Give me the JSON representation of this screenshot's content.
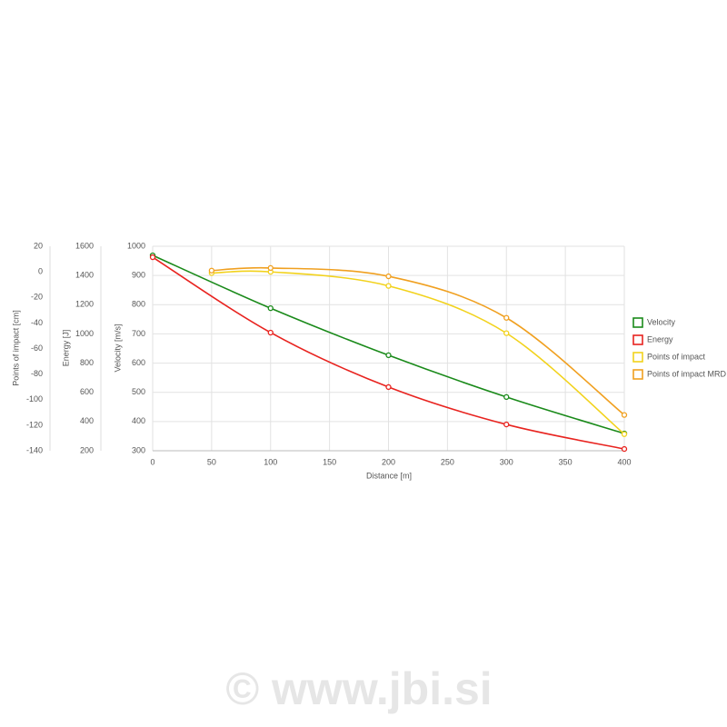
{
  "chart_data": {
    "type": "line",
    "xlabel": "Distance [m]",
    "ylabel": "Velocity [m/s]",
    "y2label": "Energy [J]",
    "y3label": "Points of impact [cm]",
    "xlim": [
      0,
      400
    ],
    "xticks": [
      0,
      50,
      100,
      150,
      200,
      250,
      300,
      350,
      400
    ],
    "ylim": [
      300,
      1000
    ],
    "yticks": [
      300,
      400,
      500,
      600,
      700,
      800,
      900,
      1000
    ],
    "y2lim": [
      200,
      1600
    ],
    "y2ticks": [
      200,
      400,
      600,
      800,
      1000,
      1200,
      1400,
      1600
    ],
    "y3lim": [
      -140,
      20
    ],
    "y3ticks": [
      -140,
      -120,
      -100,
      -80,
      -60,
      -40,
      -20,
      0,
      20
    ],
    "grid": true,
    "legend": "right",
    "series": [
      {
        "name": "Velocity",
        "color": "#1a8a1a",
        "axis": "y",
        "x": [
          0,
          100,
          200,
          300,
          400
        ],
        "values": [
          969,
          788,
          627,
          484,
          359
        ]
      },
      {
        "name": "Energy",
        "color": "#e8231f",
        "axis": "y2",
        "x": [
          0,
          100,
          200,
          300,
          400
        ],
        "values": [
          1525,
          1009,
          636,
          380,
          212
        ]
      },
      {
        "name": "Points of impact",
        "color": "#f2d21c",
        "axis": "y3",
        "x": [
          50,
          100,
          200,
          300,
          400
        ],
        "values": [
          -1,
          0,
          -11,
          -48,
          -127
        ]
      },
      {
        "name": "Points of impact MRD",
        "color": "#f0a020",
        "axis": "y3",
        "x": [
          50,
          100,
          200,
          300,
          400
        ],
        "values": [
          1,
          3,
          -3.5,
          -36,
          -112
        ]
      }
    ],
    "watermark": "© www.jbi.si"
  }
}
